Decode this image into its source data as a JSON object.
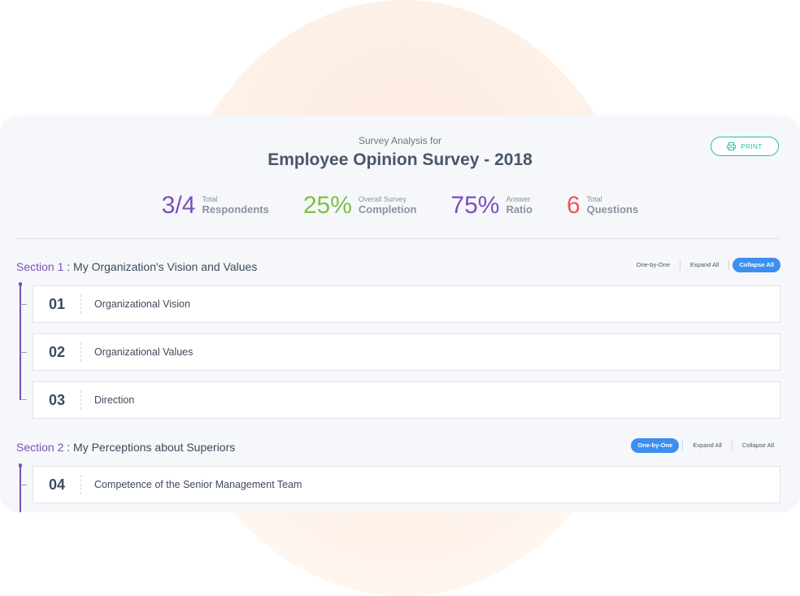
{
  "header": {
    "subtitle": "Survey Analysis for",
    "title": "Employee Opinion Survey - 2018",
    "print_label": "PRINT"
  },
  "stats": [
    {
      "value": "3/4",
      "small": "Total",
      "big": "Respondents",
      "color": "#7d4fb8"
    },
    {
      "value": "25%",
      "small": "Overall Survey",
      "big": "Completion",
      "color": "#7cc242"
    },
    {
      "value": "75%",
      "small": "Answer",
      "big": "Ratio",
      "color": "#7d4fb8"
    },
    {
      "value": "6",
      "small": "Total",
      "big": "Questions",
      "color": "#f0565a"
    }
  ],
  "sections": [
    {
      "num": "Section 1",
      "sep": " : ",
      "title": "My Organization's Vision and Values",
      "controls": {
        "one_by_one": "One-by-One",
        "expand_all": "Expand All",
        "collapse_all": "Collapse All",
        "active": "collapse_all"
      },
      "questions": [
        {
          "num": "01",
          "label": "Organizational Vision"
        },
        {
          "num": "02",
          "label": "Organizational Values"
        },
        {
          "num": "03",
          "label": "Direction"
        }
      ]
    },
    {
      "num": "Section 2",
      "sep": " : ",
      "title": "My Perceptions about Superiors",
      "controls": {
        "one_by_one": "One-by-One",
        "expand_all": "Expand All",
        "collapse_all": "Collapse All",
        "active": "one_by_one"
      },
      "questions": [
        {
          "num": "04",
          "label": "Competence of the Senior Management Team"
        }
      ]
    }
  ],
  "colors": {
    "accent_purple": "#7d4fb8",
    "accent_green": "#7cc242",
    "accent_red": "#f0565a",
    "button_blue": "#3d8ef0",
    "print_teal": "#2bbfa2"
  }
}
